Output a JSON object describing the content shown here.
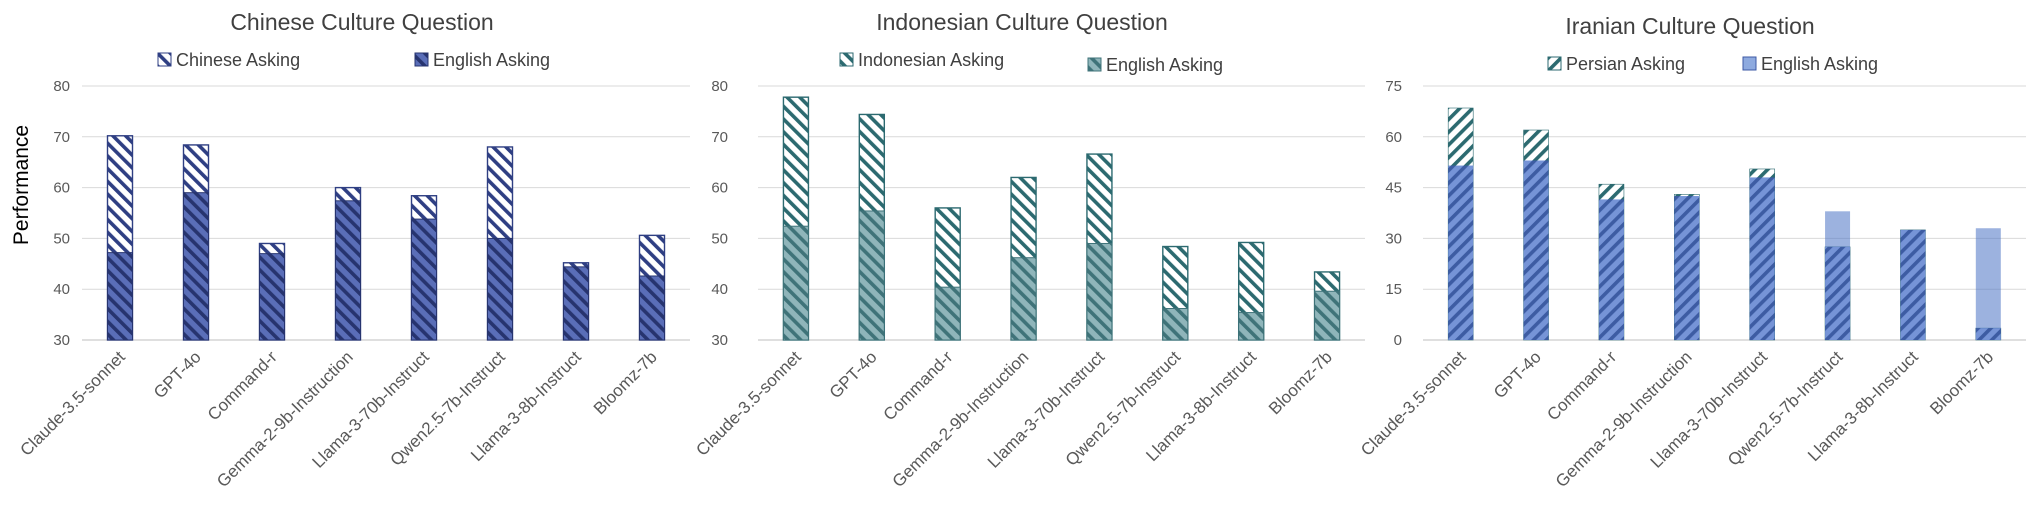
{
  "ylabel": "Performance",
  "chart_data": [
    {
      "type": "bar",
      "title": "Chinese Culture Question",
      "categories": [
        "Claude-3.5-sonnet",
        "GPT-4o",
        "Command-r",
        "Gemma-2-9b-Instruction",
        "Llama-3-70b-Instruct",
        "Qwen2.5-7b-Instruct",
        "Llama-3-8b-Instruct",
        "Bloomz-7b"
      ],
      "ylim": [
        30,
        80
      ],
      "yticks": [
        30,
        40,
        50,
        60,
        70,
        80
      ],
      "grid": true,
      "legend_position": "top",
      "series": [
        {
          "name": "Chinese Asking",
          "values": [
            70.2,
            68.4,
            49.0,
            60.0,
            58.4,
            68.0,
            45.2,
            50.6
          ],
          "style": "hatched",
          "color": "#2f3f83"
        },
        {
          "name": "English Asking",
          "values": [
            47.2,
            59.0,
            47.0,
            57.4,
            53.8,
            50.0,
            44.4,
            42.6
          ],
          "style": "solid-hatched",
          "color": "#4a5ea8"
        }
      ]
    },
    {
      "type": "bar",
      "title": "Indonesian Culture Question",
      "categories": [
        "Claude-3.5-sonnet",
        "GPT-4o",
        "Command-r",
        "Gemma-2-9b-Instruction",
        "Llama-3-70b-Instruct",
        "Qwen2.5-7b-Instruct",
        "Llama-3-8b-Instruct",
        "Bloomz-7b"
      ],
      "ylim": [
        30,
        80
      ],
      "yticks": [
        30,
        40,
        50,
        60,
        70,
        80
      ],
      "grid": true,
      "legend_position": "top",
      "series": [
        {
          "name": "Indonesian Asking",
          "values": [
            77.8,
            74.4,
            56.0,
            62.0,
            66.6,
            48.4,
            49.2,
            43.4
          ],
          "style": "hatched",
          "color": "#2c6a70"
        },
        {
          "name": "English Asking",
          "values": [
            52.4,
            55.4,
            40.4,
            46.2,
            49.0,
            36.2,
            35.4,
            39.6
          ],
          "style": "solid-hatched",
          "color": "#7aa8ae"
        }
      ]
    },
    {
      "type": "bar",
      "title": "Iranian Culture Question",
      "categories": [
        "Claude-3.5-sonnet",
        "GPT-4o",
        "Command-r",
        "Gemma-2-9b-Instruction",
        "Llama-3-70b-Instruct",
        "Qwen2.5-7b-Instruct",
        "Llama-3-8b-Instruct",
        "Bloomz-7b"
      ],
      "ylim": [
        0,
        75
      ],
      "yticks": [
        0,
        15,
        30,
        45,
        60,
        75
      ],
      "grid": true,
      "legend_position": "top",
      "series": [
        {
          "name": "Persian Asking",
          "values": [
            68.5,
            62.0,
            46.0,
            43.0,
            50.5,
            27.5,
            32.5,
            3.5
          ],
          "style": "hatched",
          "color": "#2c6a70"
        },
        {
          "name": "English Asking",
          "values": [
            51.5,
            53.0,
            41.5,
            42.5,
            48.0,
            38.0,
            32.5,
            33.0
          ],
          "style": "solid",
          "color": "#4a72c4"
        }
      ]
    }
  ]
}
